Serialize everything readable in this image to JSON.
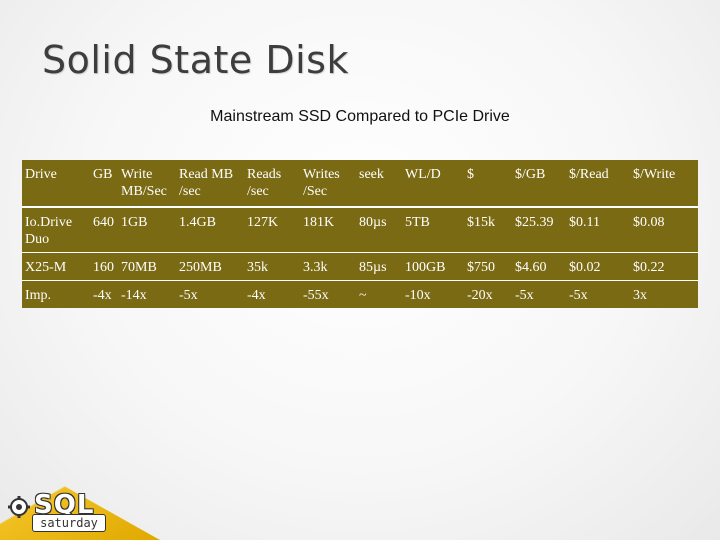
{
  "slide": {
    "title": "Solid State Disk",
    "subtitle": "Mainstream SSD Compared to PCIe Drive"
  },
  "table": {
    "header": [
      "Drive",
      "GB",
      "Write MB/Sec",
      "Read MB /sec",
      "Reads /sec",
      "Writes /Sec",
      "seek",
      "WL/D",
      "$",
      "$/GB",
      "$/Read",
      "$/Write"
    ],
    "rows": [
      [
        "Io.Drive Duo",
        "640",
        "1GB",
        "1.4GB",
        "127K",
        "181K",
        "80µs",
        "5TB",
        "$15k",
        "$25.39",
        "$0.11",
        "$0.08"
      ],
      [
        "X25-M",
        "160",
        "70MB",
        "250MB",
        "35k",
        "3.3k",
        "85µs",
        "100GB",
        "$750",
        "$4.60",
        "$0.02",
        "$0.22"
      ],
      [
        "Imp.",
        "-4x",
        "-14x",
        "-5x",
        "-4x",
        "-55x",
        "~",
        "-10x",
        "-20x",
        "-5x",
        "-5x",
        "3x"
      ]
    ]
  },
  "logo": {
    "sql": "SQL",
    "saturday": "saturday"
  },
  "colors": {
    "table_bg": "#7b6a14",
    "accent": "#f0c020"
  }
}
